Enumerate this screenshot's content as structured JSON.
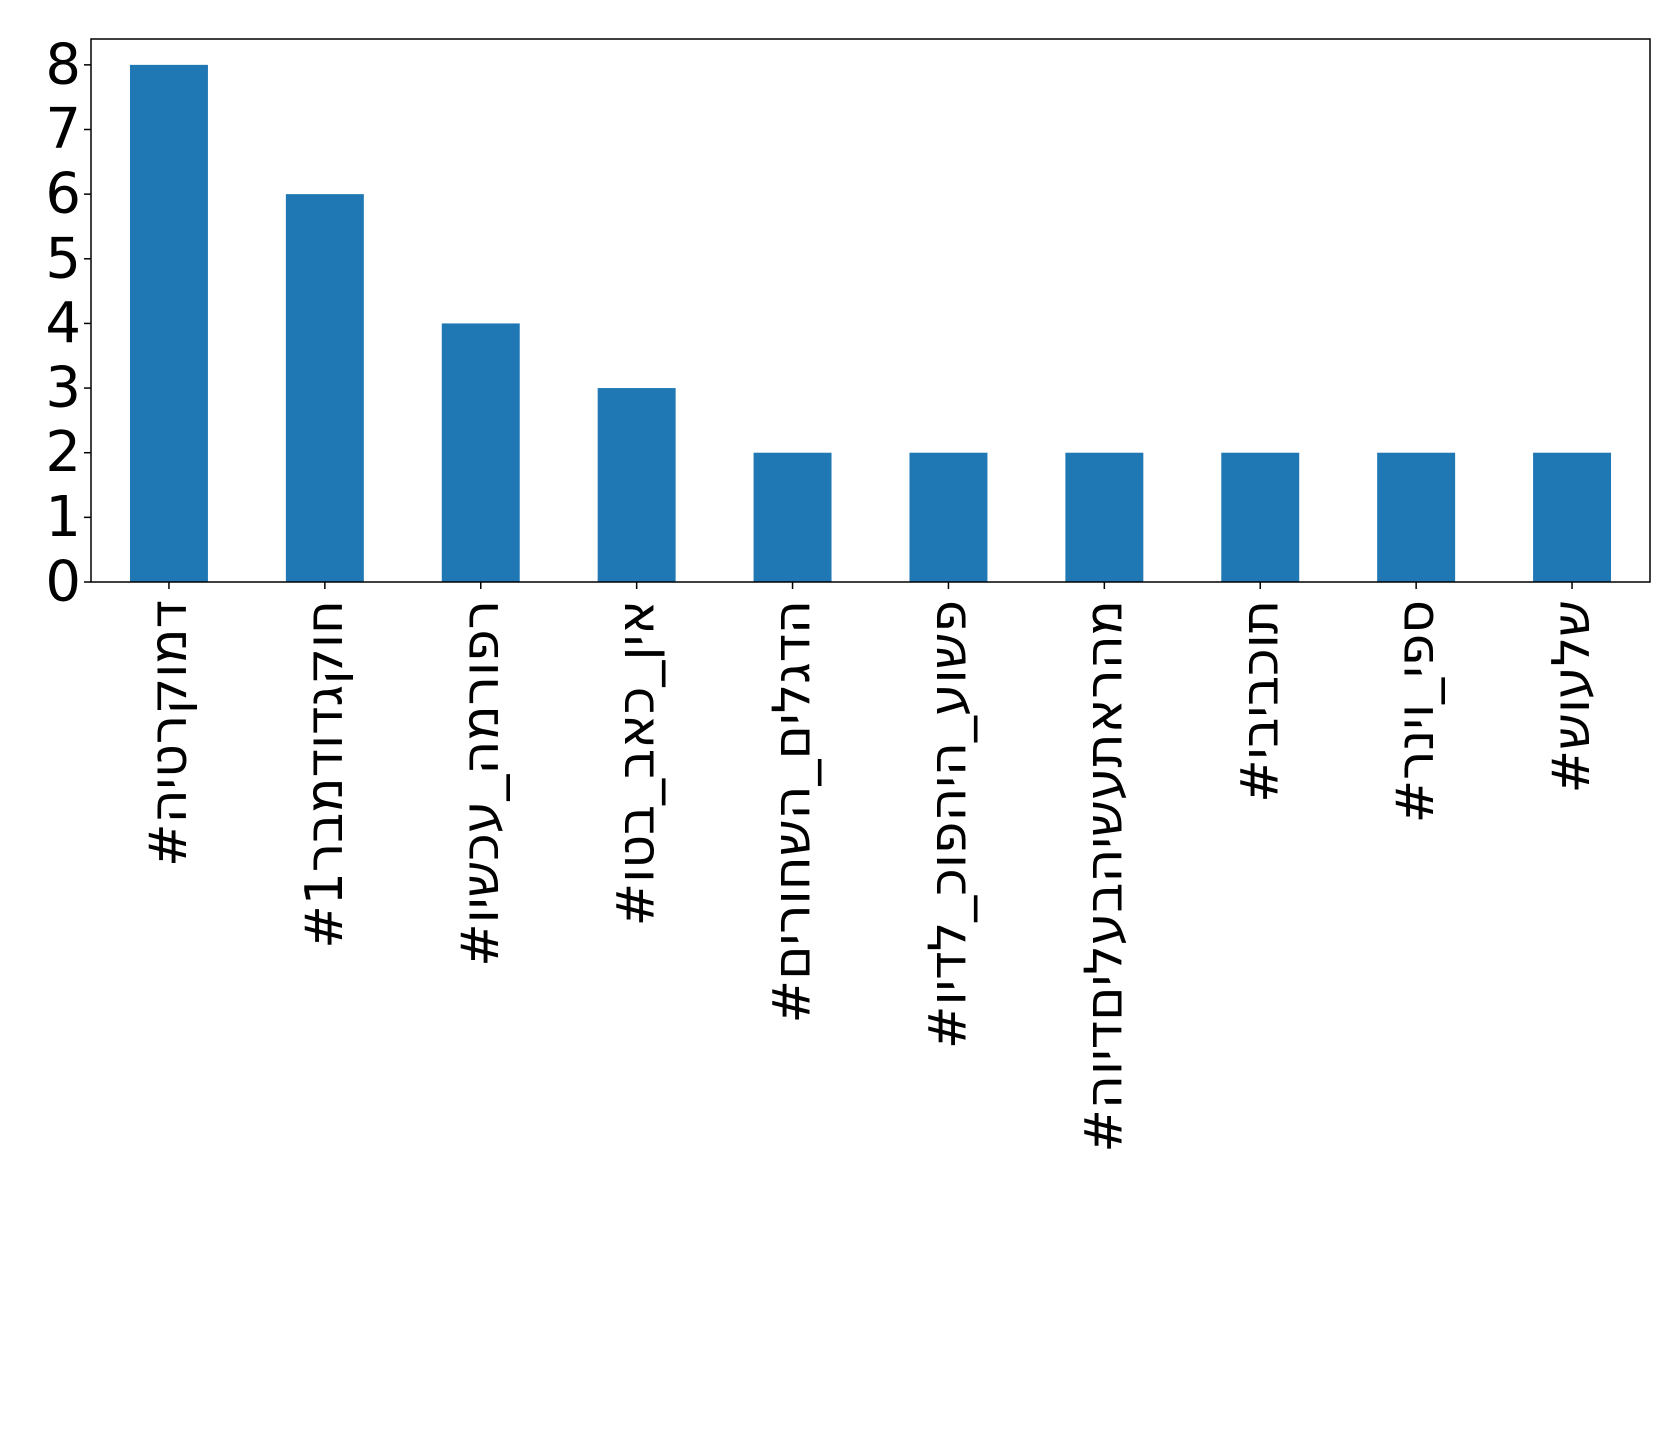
{
  "chart_data": {
    "type": "bar",
    "title": "",
    "xlabel": "",
    "ylabel": "",
    "categories": [
      "#דמוקרטיה",
      "#חוקגדודמבר1",
      "#רפורמה_עכשיו",
      "#אין_כאב_בטו",
      "#הדגלים_השחורים",
      "#פשוע_היהפוכ_לדיו",
      "#מהראתעשיהבעליםדיוה",
      "#תוכביבי",
      "#ספי_וינר",
      "#שלעוש"
    ],
    "values": [
      8,
      6,
      4,
      3,
      2,
      2,
      2,
      2,
      2,
      2
    ],
    "ylim": [
      0,
      8.4
    ],
    "yticks": [
      0,
      1,
      2,
      3,
      4,
      5,
      6,
      7,
      8
    ],
    "grid": false,
    "legend": "none",
    "colors": {
      "bar": "#1f77b4",
      "axis": "#000000",
      "background": "#ffffff"
    }
  }
}
